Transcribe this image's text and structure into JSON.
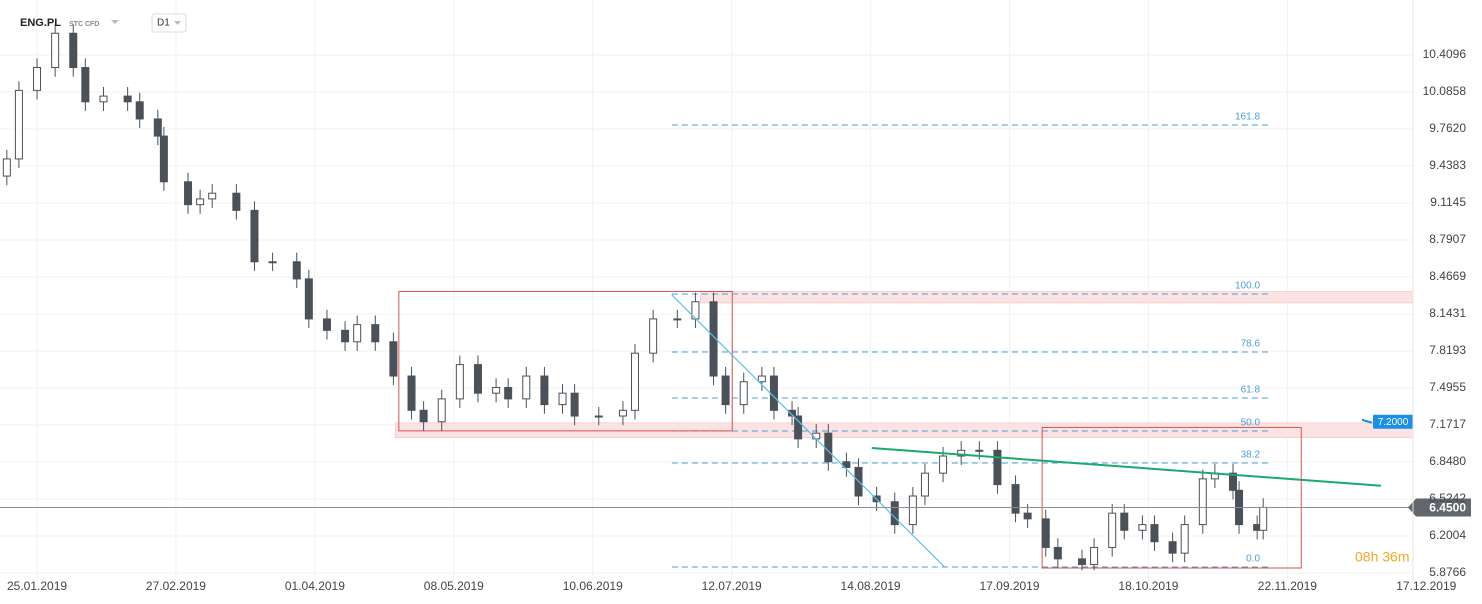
{
  "header": {
    "symbol": "ENG.PL",
    "instrument": "STC CFD",
    "interval": "D1"
  },
  "chart_data": {
    "type": "candlestick",
    "xlim": [
      -6.13,
      227.8
    ],
    "ylim": [
      5.815,
      10.891
    ],
    "xticks": [
      {
        "value": 0,
        "label": "25.01.2019"
      },
      {
        "value": 23,
        "label": "27.02.2019"
      },
      {
        "value": 46,
        "label": "01.04.2019"
      },
      {
        "value": 69,
        "label": "08.05.2019"
      },
      {
        "value": 92,
        "label": "10.06.2019"
      },
      {
        "value": 115,
        "label": "12.07.2019"
      },
      {
        "value": 138,
        "label": "14.08.2019"
      },
      {
        "value": 161,
        "label": "17.09.2019"
      },
      {
        "value": 184,
        "label": "18.10.2019"
      },
      {
        "value": 207,
        "label": "22.11.2019"
      },
      {
        "value": 230,
        "label": "17.12.2019"
      }
    ],
    "yticks": [
      10.4096,
      10.0858,
      {
        "value": 9.762,
        "label": "9.7620"
      },
      9.4383,
      9.1145,
      8.7907,
      8.4669,
      8.1431,
      7.8193,
      7.4955,
      7.1717,
      {
        "value": 6.848,
        "label": "6.8480"
      },
      6.5242,
      6.2004,
      5.8766
    ],
    "grid": true,
    "up_color": "#ffffff",
    "down_color": "#4a5158",
    "x": [
      -5,
      -3,
      0,
      3,
      6,
      8,
      11,
      15,
      17,
      20,
      21,
      25,
      27,
      29,
      33,
      36,
      39,
      43,
      45,
      48,
      51,
      53,
      56,
      59,
      62,
      64,
      67,
      70,
      73,
      76,
      78,
      81,
      84,
      87,
      89,
      93,
      97,
      99,
      102,
      106,
      109,
      112,
      114,
      117,
      120,
      122,
      125,
      126,
      129,
      131,
      134,
      136,
      139,
      142,
      145,
      147,
      150,
      153,
      156,
      159,
      162,
      164,
      167,
      169,
      173,
      175,
      178,
      180,
      183,
      185,
      188,
      190,
      193,
      195,
      198,
      199,
      202,
      203
    ],
    "open": [
      9.35,
      9.5,
      10.1,
      10.3,
      10.6,
      10.3,
      10.0,
      10.05,
      10.0,
      9.85,
      9.7,
      9.3,
      9.1,
      9.15,
      9.2,
      9.05,
      8.6,
      8.6,
      8.45,
      8.1,
      8.0,
      7.9,
      8.05,
      7.9,
      7.6,
      7.3,
      7.2,
      7.4,
      7.7,
      7.45,
      7.5,
      7.4,
      7.6,
      7.35,
      7.45,
      7.25,
      7.25,
      7.3,
      7.8,
      8.1,
      8.1,
      8.25,
      7.6,
      7.35,
      7.55,
      7.6,
      7.3,
      7.25,
      7.05,
      7.1,
      6.85,
      6.8,
      6.55,
      6.5,
      6.3,
      6.55,
      6.75,
      6.9,
      6.95,
      6.95,
      6.65,
      6.4,
      6.35,
      6.1,
      6.0,
      5.95,
      6.1,
      6.4,
      6.25,
      6.3,
      6.15,
      6.05,
      6.3,
      6.7,
      6.75,
      6.6,
      6.3,
      6.25
    ],
    "high": [
      9.58,
      10.18,
      10.38,
      10.68,
      10.68,
      10.38,
      10.13,
      10.13,
      10.08,
      9.93,
      9.78,
      9.38,
      9.23,
      9.28,
      9.28,
      9.13,
      8.68,
      8.68,
      8.53,
      8.18,
      8.08,
      8.13,
      8.13,
      7.98,
      7.68,
      7.38,
      7.48,
      7.78,
      7.78,
      7.58,
      7.58,
      7.68,
      7.68,
      7.53,
      7.53,
      7.33,
      7.38,
      7.88,
      8.18,
      8.18,
      8.33,
      8.33,
      7.68,
      7.63,
      7.68,
      7.68,
      7.38,
      7.33,
      7.18,
      7.18,
      6.93,
      6.88,
      6.63,
      6.58,
      6.63,
      6.83,
      6.98,
      7.03,
      7.03,
      7.03,
      6.73,
      6.48,
      6.43,
      6.18,
      6.08,
      6.18,
      6.48,
      6.48,
      6.38,
      6.38,
      6.23,
      6.38,
      6.78,
      6.83,
      6.83,
      6.68,
      6.38,
      6.53
    ],
    "low": [
      9.27,
      9.42,
      10.02,
      10.22,
      10.22,
      9.92,
      9.92,
      9.92,
      9.77,
      9.62,
      9.22,
      9.02,
      9.02,
      9.07,
      8.97,
      8.52,
      8.52,
      8.37,
      8.02,
      7.92,
      7.82,
      7.82,
      7.82,
      7.52,
      7.22,
      7.12,
      7.12,
      7.32,
      7.37,
      7.37,
      7.32,
      7.32,
      7.27,
      7.27,
      7.17,
      7.17,
      7.17,
      7.22,
      7.72,
      8.02,
      8.02,
      7.52,
      7.27,
      7.27,
      7.47,
      7.22,
      7.17,
      6.97,
      6.97,
      6.77,
      6.72,
      6.47,
      6.42,
      6.22,
      6.22,
      6.47,
      6.67,
      6.82,
      6.87,
      6.57,
      6.32,
      6.27,
      6.02,
      5.92,
      5.9,
      5.9,
      6.02,
      6.17,
      6.17,
      6.07,
      5.97,
      5.97,
      6.22,
      6.62,
      6.52,
      6.22,
      6.17,
      6.17
    ],
    "close": [
      9.5,
      10.1,
      10.3,
      10.6,
      10.3,
      10.0,
      10.05,
      10.0,
      9.85,
      9.7,
      9.3,
      9.1,
      9.15,
      9.2,
      9.05,
      8.6,
      8.6,
      8.45,
      8.1,
      8.0,
      7.9,
      8.05,
      7.9,
      7.6,
      7.3,
      7.2,
      7.4,
      7.7,
      7.45,
      7.5,
      7.4,
      7.6,
      7.35,
      7.45,
      7.25,
      7.25,
      7.3,
      7.8,
      8.1,
      8.1,
      8.25,
      7.6,
      7.35,
      7.55,
      7.6,
      7.3,
      7.25,
      7.05,
      7.1,
      6.85,
      6.8,
      6.55,
      6.5,
      6.3,
      6.55,
      6.75,
      6.9,
      6.95,
      6.95,
      6.65,
      6.4,
      6.35,
      6.1,
      6.0,
      5.95,
      6.1,
      6.4,
      6.25,
      6.3,
      6.15,
      6.05,
      6.3,
      6.7,
      6.75,
      6.6,
      6.3,
      6.25,
      6.45
    ],
    "fib": {
      "color": "#4a9fd4",
      "x": [
        105.1,
        203.8
      ],
      "levels": [
        {
          "label": "161.8",
          "value": 9.797
        },
        {
          "label": "100.0",
          "value": 8.318
        },
        {
          "label": "78.6",
          "value": 7.81
        },
        {
          "label": "61.8",
          "value": 7.408
        },
        {
          "label": "50.0",
          "value": 7.119
        },
        {
          "label": "38.2",
          "value": 6.839
        },
        {
          "label": "0.0",
          "value": 5.929
        }
      ]
    },
    "zones": [
      {
        "color": "#fbe3e3",
        "x": [
          109.8,
          227.8
        ],
        "y": [
          8.34,
          8.24
        ]
      },
      {
        "color": "#fbe3e3",
        "x": [
          59.3,
          227.8
        ],
        "y": [
          7.19,
          7.06
        ]
      }
    ],
    "boxes": [
      {
        "color": "#d9534f",
        "x": [
          59.9,
          115.1
        ],
        "y": [
          8.34,
          7.12
        ]
      },
      {
        "color": "#d9534f",
        "x": [
          166.4,
          209.3
        ],
        "y": [
          7.15,
          5.92
        ]
      }
    ],
    "trend_lines": [
      {
        "color": "#1aaa6e",
        "x": [
          138.2,
          222.5
        ],
        "y": [
          6.97,
          6.64
        ]
      },
      {
        "color": "#5bc0e8",
        "x": [
          105.1,
          150.2
        ],
        "y": [
          8.31,
          5.93
        ]
      }
    ],
    "last_price": {
      "value": 6.45,
      "label": "6.4500",
      "color": "#62676d"
    },
    "alert": {
      "value": 7.2,
      "label": "7.2000",
      "color": "#1a8fe3"
    },
    "countdown": "08h 36m"
  }
}
